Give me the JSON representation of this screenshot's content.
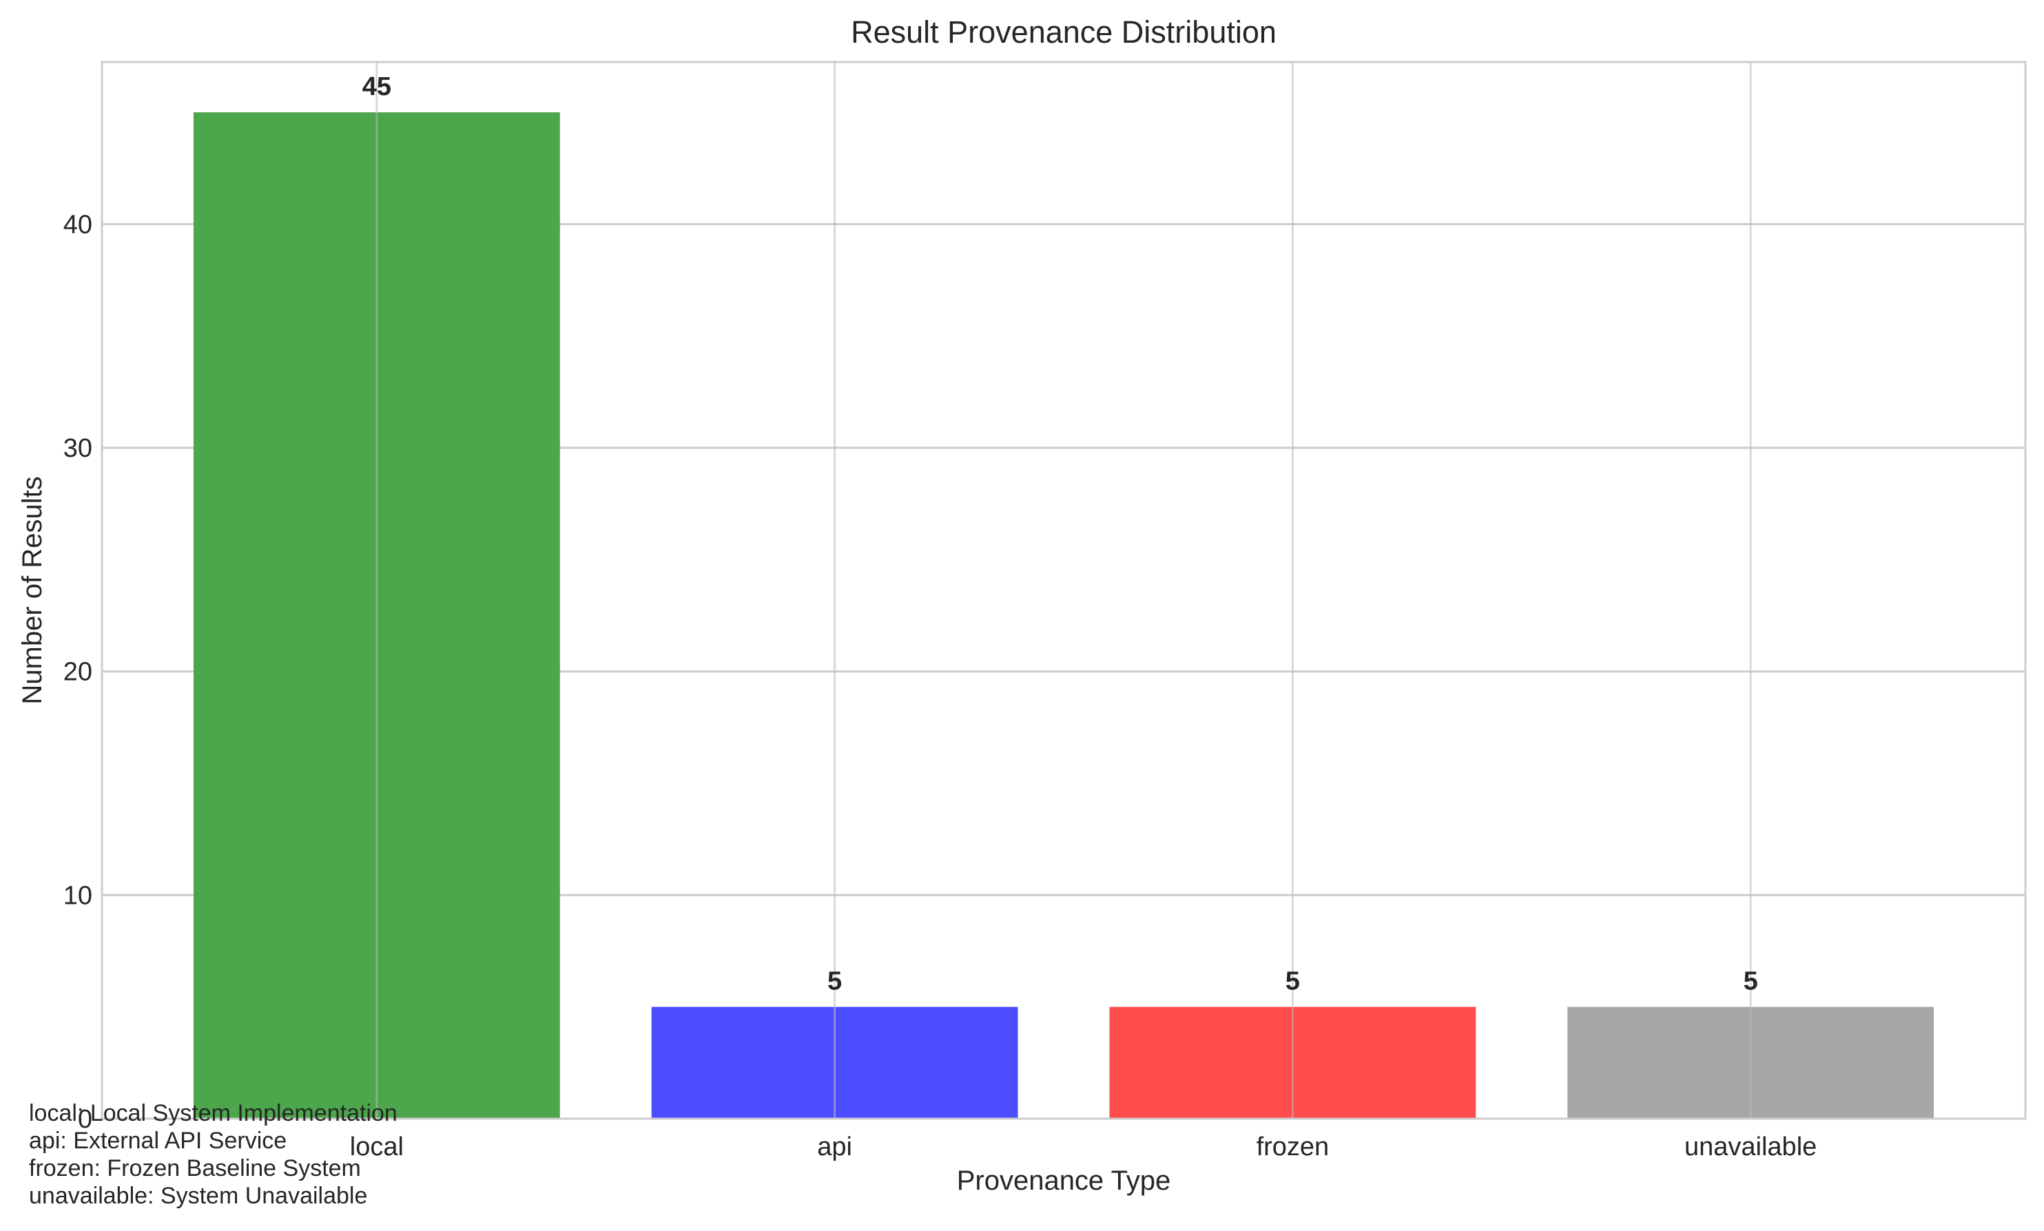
{
  "chart_data": {
    "type": "bar",
    "title": "Result Provenance Distribution",
    "xlabel": "Provenance Type",
    "ylabel": "Number of Results",
    "categories": [
      "local",
      "api",
      "frozen",
      "unavailable"
    ],
    "values": [
      45,
      5,
      5,
      5
    ],
    "colors": [
      "#4ca64c",
      "#4c4cff",
      "#ff4c4c",
      "#a6a6a6"
    ],
    "data_labels": [
      "45",
      "5",
      "5",
      "5"
    ],
    "ylim": [
      0,
      47.25
    ],
    "yticks": [
      0,
      10,
      20,
      30,
      40
    ],
    "ytick_labels": [
      "0",
      "10",
      "20",
      "30",
      "40"
    ],
    "grid": true,
    "annotation_lines": [
      "local: Local System Implementation",
      "api: External API Service",
      "frozen: Frozen Baseline System",
      "unavailable: System Unavailable"
    ]
  }
}
